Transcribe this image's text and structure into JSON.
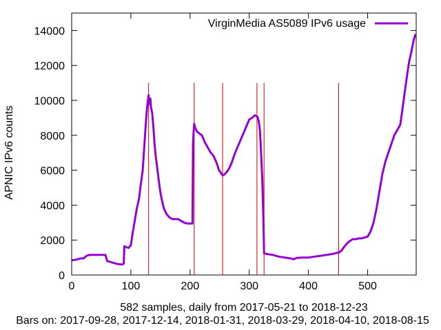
{
  "chart_data": {
    "type": "line",
    "ylabel": "APNIC IPv6 counts",
    "xlabel": "582 samples, daily from 2017-05-21 to 2018-12-23",
    "footer": "Bars on:  2017-09-28, 2017-12-14, 2018-01-31, 2018-03-29, 2018-04-10, 2018-08-15",
    "xlim": [
      0,
      582
    ],
    "ylim": [
      0,
      15000
    ],
    "x_ticks": [
      0,
      100,
      200,
      300,
      400,
      500
    ],
    "y_ticks": [
      0,
      2000,
      4000,
      6000,
      8000,
      10000,
      12000,
      14000
    ],
    "bars_x": [
      130,
      207,
      255,
      313,
      325,
      451
    ],
    "bar_top": 11000,
    "bar_color": "#cc0000",
    "series": [
      {
        "name": "VirginMedia AS5089 IPv6 usage",
        "color": "#9400d3",
        "points": [
          [
            0,
            850
          ],
          [
            5,
            860
          ],
          [
            10,
            900
          ],
          [
            15,
            950
          ],
          [
            20,
            950
          ],
          [
            25,
            1100
          ],
          [
            30,
            1150
          ],
          [
            40,
            1150
          ],
          [
            50,
            1150
          ],
          [
            57,
            1150
          ],
          [
            60,
            800
          ],
          [
            65,
            750
          ],
          [
            70,
            700
          ],
          [
            75,
            650
          ],
          [
            80,
            620
          ],
          [
            85,
            600
          ],
          [
            88,
            650
          ],
          [
            89,
            1650
          ],
          [
            92,
            1600
          ],
          [
            96,
            1550
          ],
          [
            100,
            1700
          ],
          [
            103,
            2400
          ],
          [
            106,
            3000
          ],
          [
            108,
            3400
          ],
          [
            110,
            3800
          ],
          [
            112,
            4100
          ],
          [
            114,
            4400
          ],
          [
            116,
            5000
          ],
          [
            118,
            5500
          ],
          [
            120,
            6000
          ],
          [
            122,
            7000
          ],
          [
            124,
            8000
          ],
          [
            126,
            9000
          ],
          [
            128,
            9800
          ],
          [
            130,
            10300
          ],
          [
            131,
            9800
          ],
          [
            133,
            10100
          ],
          [
            134,
            9600
          ],
          [
            136,
            9300
          ],
          [
            138,
            8500
          ],
          [
            140,
            7500
          ],
          [
            142,
            6800
          ],
          [
            145,
            6000
          ],
          [
            148,
            5200
          ],
          [
            150,
            4700
          ],
          [
            153,
            4200
          ],
          [
            156,
            3800
          ],
          [
            160,
            3500
          ],
          [
            165,
            3300
          ],
          [
            170,
            3200
          ],
          [
            175,
            3200
          ],
          [
            180,
            3200
          ],
          [
            185,
            3100
          ],
          [
            190,
            3000
          ],
          [
            195,
            2950
          ],
          [
            200,
            2950
          ],
          [
            204,
            2950
          ],
          [
            205,
            7500
          ],
          [
            206,
            8200
          ],
          [
            207,
            8650
          ],
          [
            209,
            8400
          ],
          [
            212,
            8200
          ],
          [
            216,
            8100
          ],
          [
            220,
            8000
          ],
          [
            225,
            7600
          ],
          [
            230,
            7300
          ],
          [
            235,
            7000
          ],
          [
            240,
            6800
          ],
          [
            245,
            6400
          ],
          [
            249,
            6000
          ],
          [
            252,
            5850
          ],
          [
            255,
            5700
          ],
          [
            258,
            5750
          ],
          [
            262,
            5900
          ],
          [
            266,
            6100
          ],
          [
            270,
            6400
          ],
          [
            275,
            6900
          ],
          [
            280,
            7300
          ],
          [
            285,
            7700
          ],
          [
            290,
            8100
          ],
          [
            295,
            8500
          ],
          [
            300,
            8900
          ],
          [
            305,
            9000
          ],
          [
            309,
            9150
          ],
          [
            312,
            9100
          ],
          [
            314,
            9050
          ],
          [
            316,
            8800
          ],
          [
            318,
            8300
          ],
          [
            320,
            7000
          ],
          [
            322,
            5500
          ],
          [
            324,
            3000
          ],
          [
            325,
            1250
          ],
          [
            330,
            1200
          ],
          [
            340,
            1150
          ],
          [
            350,
            1050
          ],
          [
            360,
            1000
          ],
          [
            370,
            950
          ],
          [
            375,
            900
          ],
          [
            380,
            980
          ],
          [
            390,
            1000
          ],
          [
            400,
            1000
          ],
          [
            410,
            1050
          ],
          [
            420,
            1100
          ],
          [
            430,
            1150
          ],
          [
            440,
            1200
          ],
          [
            446,
            1250
          ],
          [
            452,
            1300
          ],
          [
            456,
            1400
          ],
          [
            460,
            1600
          ],
          [
            465,
            1800
          ],
          [
            470,
            1950
          ],
          [
            475,
            2050
          ],
          [
            480,
            2050
          ],
          [
            485,
            2100
          ],
          [
            490,
            2100
          ],
          [
            495,
            2150
          ],
          [
            500,
            2200
          ],
          [
            505,
            2500
          ],
          [
            510,
            3000
          ],
          [
            515,
            3800
          ],
          [
            520,
            4800
          ],
          [
            525,
            5800
          ],
          [
            530,
            6500
          ],
          [
            535,
            7000
          ],
          [
            540,
            7500
          ],
          [
            545,
            8000
          ],
          [
            550,
            8300
          ],
          [
            555,
            8600
          ],
          [
            558,
            9300
          ],
          [
            562,
            10300
          ],
          [
            566,
            11300
          ],
          [
            570,
            12200
          ],
          [
            574,
            12800
          ],
          [
            578,
            13500
          ],
          [
            581,
            13800
          ]
        ]
      }
    ]
  }
}
